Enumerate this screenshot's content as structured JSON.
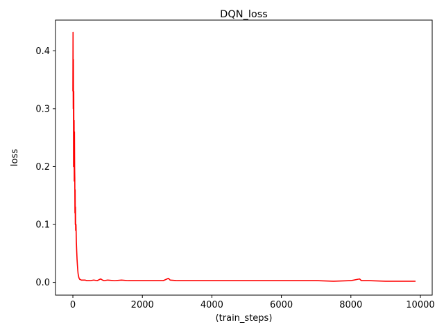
{
  "chart_data": {
    "type": "line",
    "title": "DQN_loss",
    "xlabel": "(train_steps)",
    "ylabel": "loss",
    "xlim": [
      -500,
      10340
    ],
    "ylim": [
      -0.022,
      0.453
    ],
    "xticks": [
      0,
      2000,
      4000,
      6000,
      8000,
      10000
    ],
    "xtick_labels": [
      "0",
      "2000",
      "4000",
      "6000",
      "8000",
      "10000"
    ],
    "yticks": [
      0.0,
      0.1,
      0.2,
      0.3,
      0.4
    ],
    "ytick_labels": [
      "0.0",
      "0.1",
      "0.2",
      "0.3",
      "0.4"
    ],
    "grid": false,
    "legend": "none",
    "series": [
      {
        "color": "#ff0000",
        "x": [
          0,
          5,
          10,
          15,
          20,
          25,
          30,
          35,
          40,
          45,
          50,
          55,
          60,
          65,
          70,
          75,
          80,
          90,
          100,
          110,
          120,
          130,
          140,
          150,
          160,
          170,
          180,
          190,
          200,
          220,
          240,
          260,
          280,
          300,
          350,
          400,
          500,
          600,
          700,
          800,
          850,
          900,
          1000,
          1200,
          1400,
          1600,
          1800,
          2000,
          2200,
          2400,
          2600,
          2750,
          2800,
          3000,
          3500,
          4000,
          4500,
          5000,
          5500,
          6000,
          6500,
          7000,
          7500,
          8000,
          8250,
          8300,
          8500,
          9000,
          9500,
          9860
        ],
        "y": [
          0.33,
          0.432,
          0.3,
          0.385,
          0.2,
          0.33,
          0.21,
          0.28,
          0.175,
          0.26,
          0.2,
          0.18,
          0.12,
          0.16,
          0.1,
          0.13,
          0.09,
          0.1,
          0.07,
          0.054,
          0.04,
          0.03,
          0.022,
          0.015,
          0.012,
          0.009,
          0.007,
          0.006,
          0.005,
          0.005,
          0.004,
          0.004,
          0.004,
          0.004,
          0.004,
          0.003,
          0.003,
          0.004,
          0.003,
          0.006,
          0.004,
          0.003,
          0.004,
          0.003,
          0.004,
          0.003,
          0.003,
          0.003,
          0.003,
          0.003,
          0.003,
          0.007,
          0.004,
          0.003,
          0.003,
          0.003,
          0.003,
          0.003,
          0.003,
          0.003,
          0.003,
          0.003,
          0.002,
          0.003,
          0.006,
          0.003,
          0.003,
          0.002,
          0.002,
          0.002
        ]
      }
    ]
  }
}
